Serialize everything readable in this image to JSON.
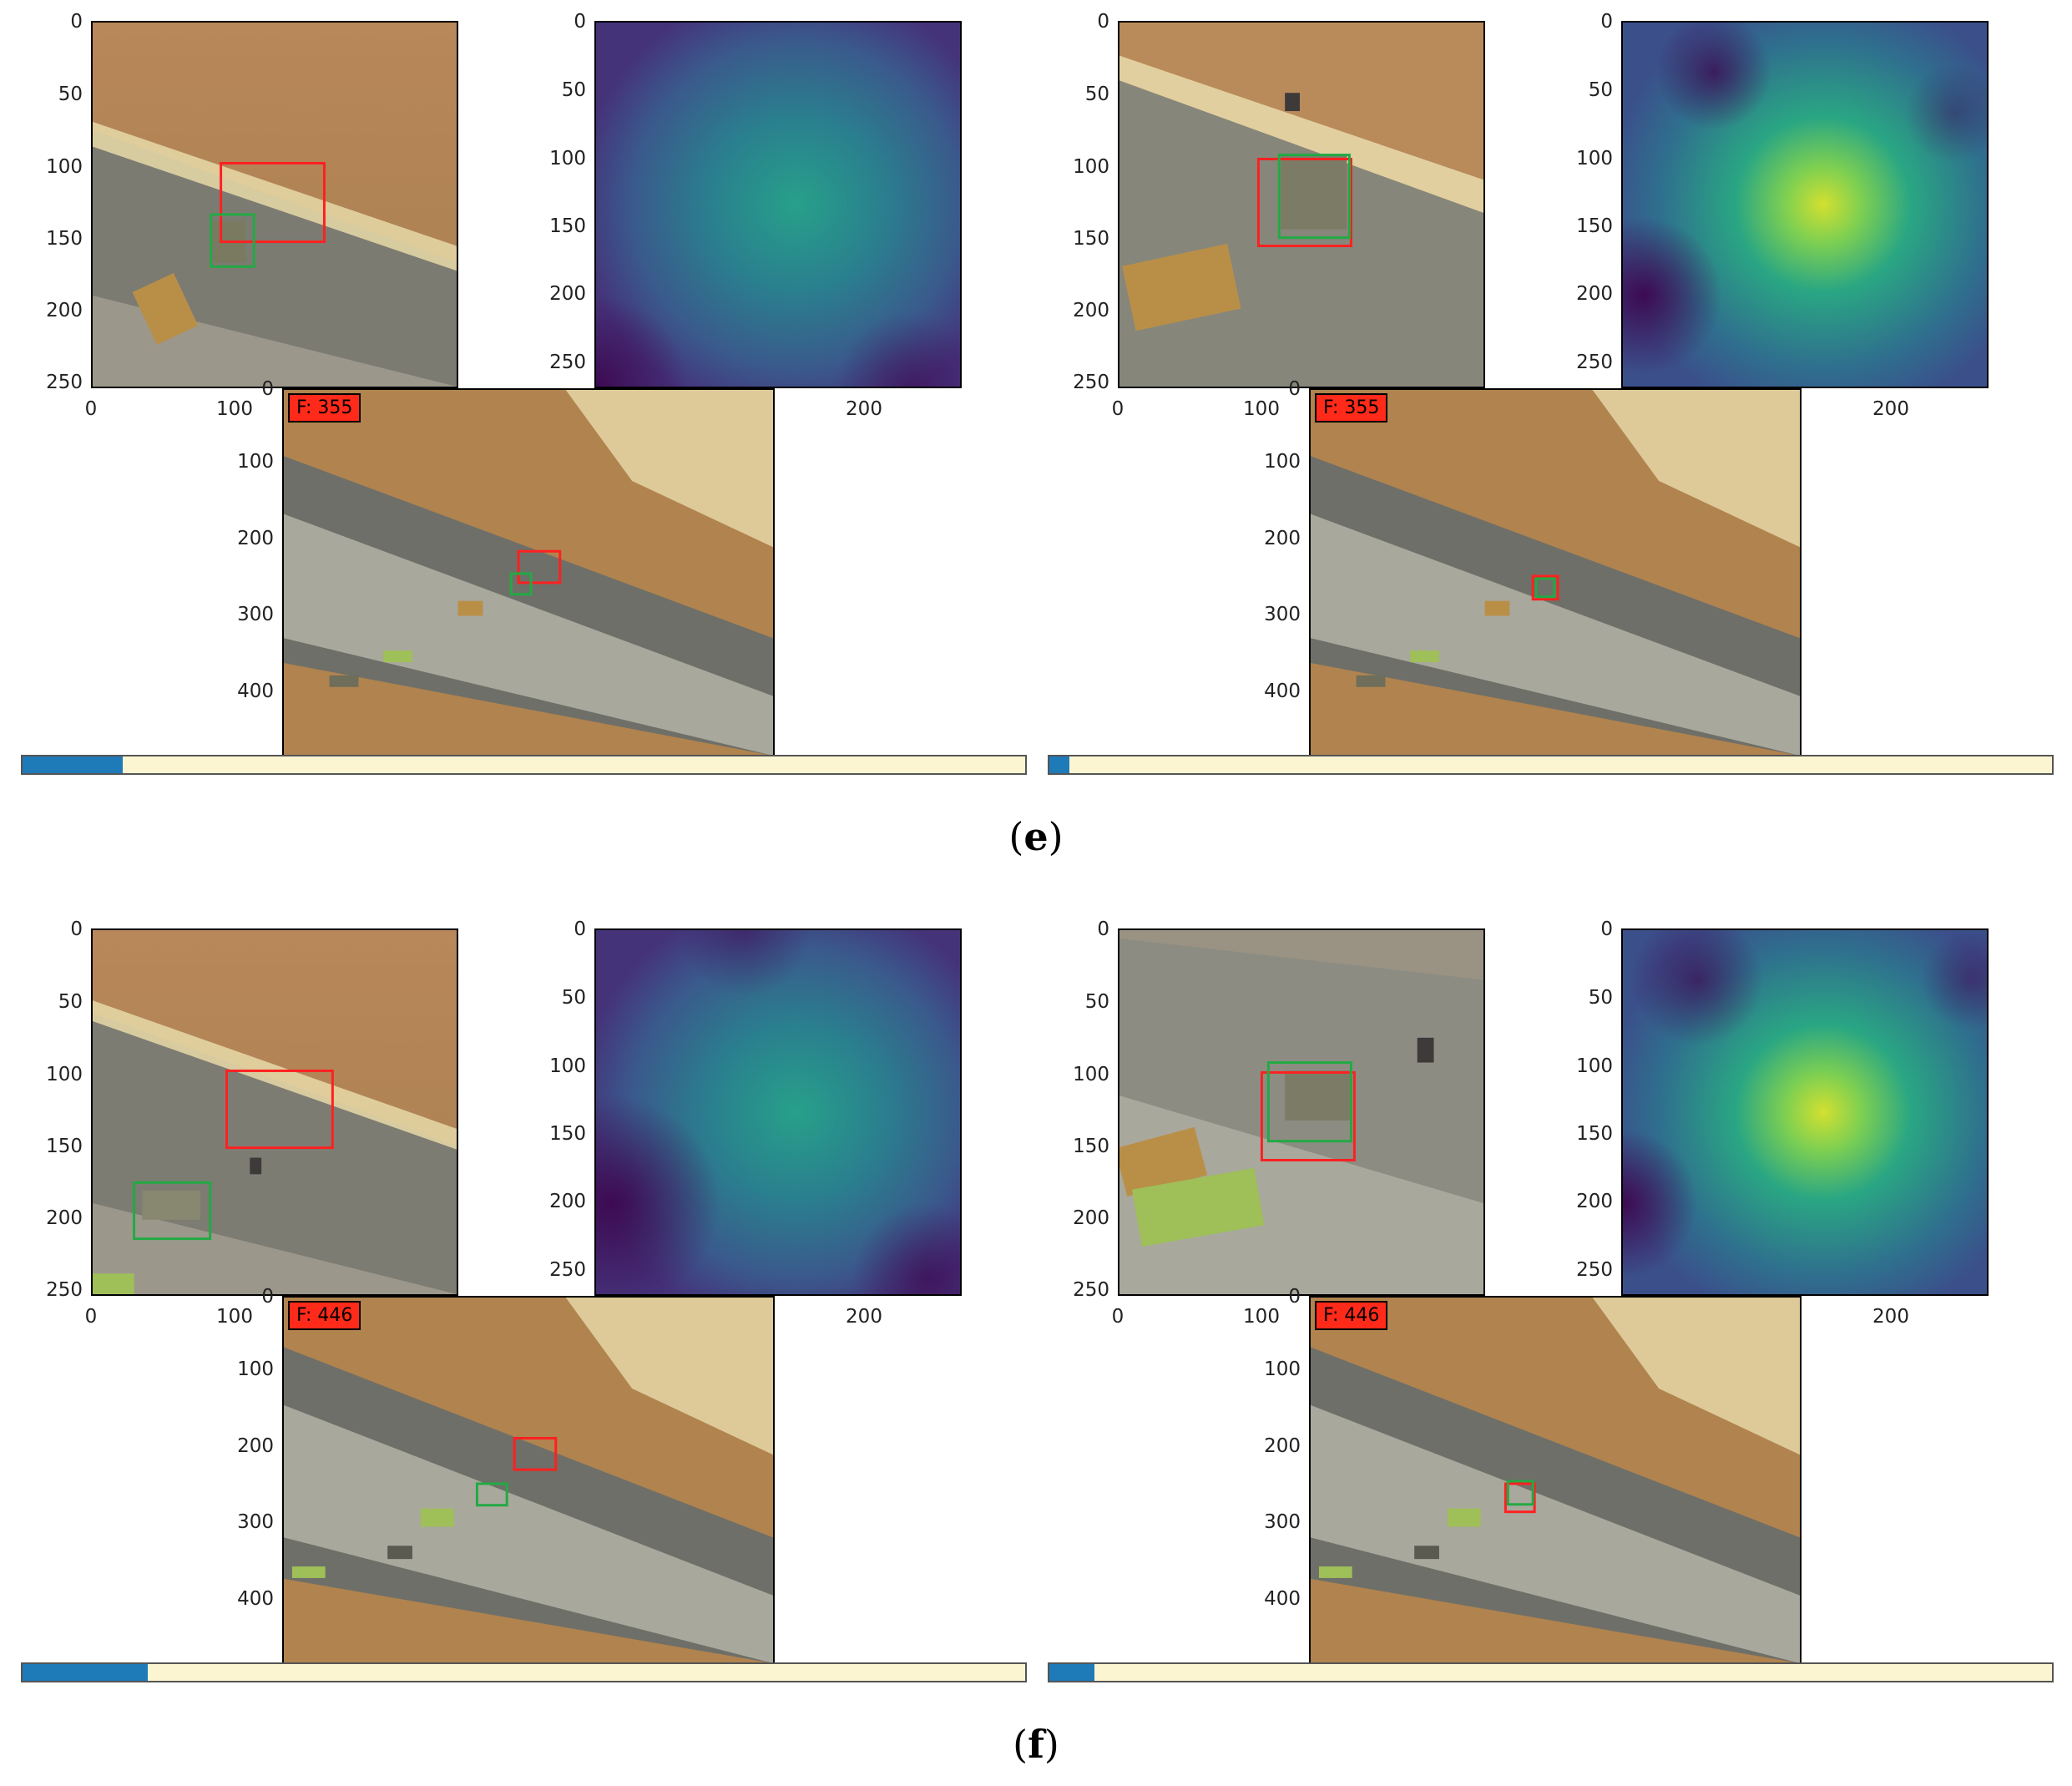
{
  "panels": [
    {
      "frame_label": "F: 355",
      "progress": 0.1
    },
    {
      "frame_label": "F: 355",
      "progress": 0.02
    },
    {
      "frame_label": "F: 446",
      "progress": 0.125
    },
    {
      "frame_label": "F: 446",
      "progress": 0.045
    }
  ],
  "captions": {
    "e": "e",
    "f": "f"
  },
  "ticks": {
    "patch_y": [
      "0",
      "50",
      "100",
      "150",
      "200",
      "250"
    ],
    "patch_x": [
      "0",
      "100"
    ],
    "heat_y": [
      "0",
      "50",
      "100",
      "150",
      "200",
      "250"
    ],
    "heat_x": [
      "200"
    ],
    "frame_y": [
      "0",
      "100",
      "200",
      "300",
      "400"
    ]
  },
  "colors": {
    "tracker_box": "#ff2020",
    "ground_truth_box": "#22aa44",
    "badge": "#ff2a1a",
    "progress_fill": "#1f7ab8",
    "progress_bg": "#fbf5d2"
  }
}
